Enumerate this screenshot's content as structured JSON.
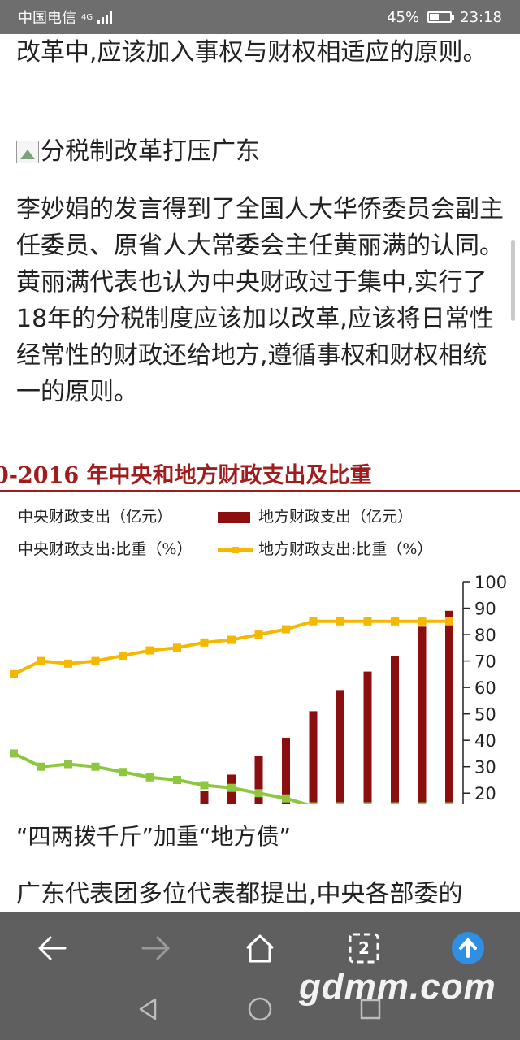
{
  "status": {
    "carrier": "中国电信",
    "network": "4G",
    "battery": "45%",
    "battery_level": 0.45,
    "time": "23:18"
  },
  "article": {
    "p1": "改革中,应该加入事权与财权相适应的原则。",
    "image_alt": "分税制改革打压广东",
    "p2": "李妙娟的发言得到了全国人大华侨委员会副主任委员、原省人大常委会主任黄丽满的认同。黄丽满代表也认为中央财政过于集中,实行了18年的分税制度应该加以改革,应该将日常性经常性的财政还给地方,遵循事权和财权相统一的原则。",
    "subheading": "“四两拨千斤”加重“地方债”",
    "p3": "广东代表团多位代表都提出,中央各部委的"
  },
  "chart_data": {
    "type": "bar",
    "title": "0-2016 年中央和地方财政支出及比重",
    "legend": [
      "中央财政支出（亿元）",
      "地方财政支出（亿元）",
      "中央财政支出:比重（%）",
      "地方财政支出:比重（%）"
    ],
    "yaxis_right": {
      "ticks": [
        "100",
        "90",
        "80",
        "70",
        "60",
        "50",
        "40",
        "30",
        "20"
      ],
      "ylim": [
        17,
        100
      ]
    },
    "series": [
      {
        "name": "地方财政支出（亿元）",
        "type": "bar",
        "color": "#8b0f0f",
        "values": [
          null,
          null,
          null,
          null,
          null,
          null,
          16,
          21,
          27,
          34,
          41,
          51,
          59,
          66,
          72,
          83,
          89
        ]
      },
      {
        "name": "地方财政支出:比重（%）",
        "type": "line",
        "color": "#f5b800",
        "values": [
          65,
          70,
          69,
          70,
          72,
          74,
          75,
          77,
          78,
          80,
          82,
          85,
          85,
          85,
          85,
          85,
          85
        ]
      },
      {
        "name": "中央财政支出:比重（%）",
        "type": "line",
        "color": "#8dc63f",
        "values": [
          35,
          30,
          31,
          30,
          28,
          26,
          25,
          23,
          22,
          20,
          18,
          15,
          15,
          15,
          15,
          15,
          15
        ]
      }
    ],
    "colors": {
      "central_bar": "#c0504d",
      "local_bar": "#8b0f0f",
      "central_line": "#8dc63f",
      "local_line": "#f5b800"
    }
  },
  "nav": {
    "tab_count": "2",
    "watermark": "gdmm.com"
  }
}
